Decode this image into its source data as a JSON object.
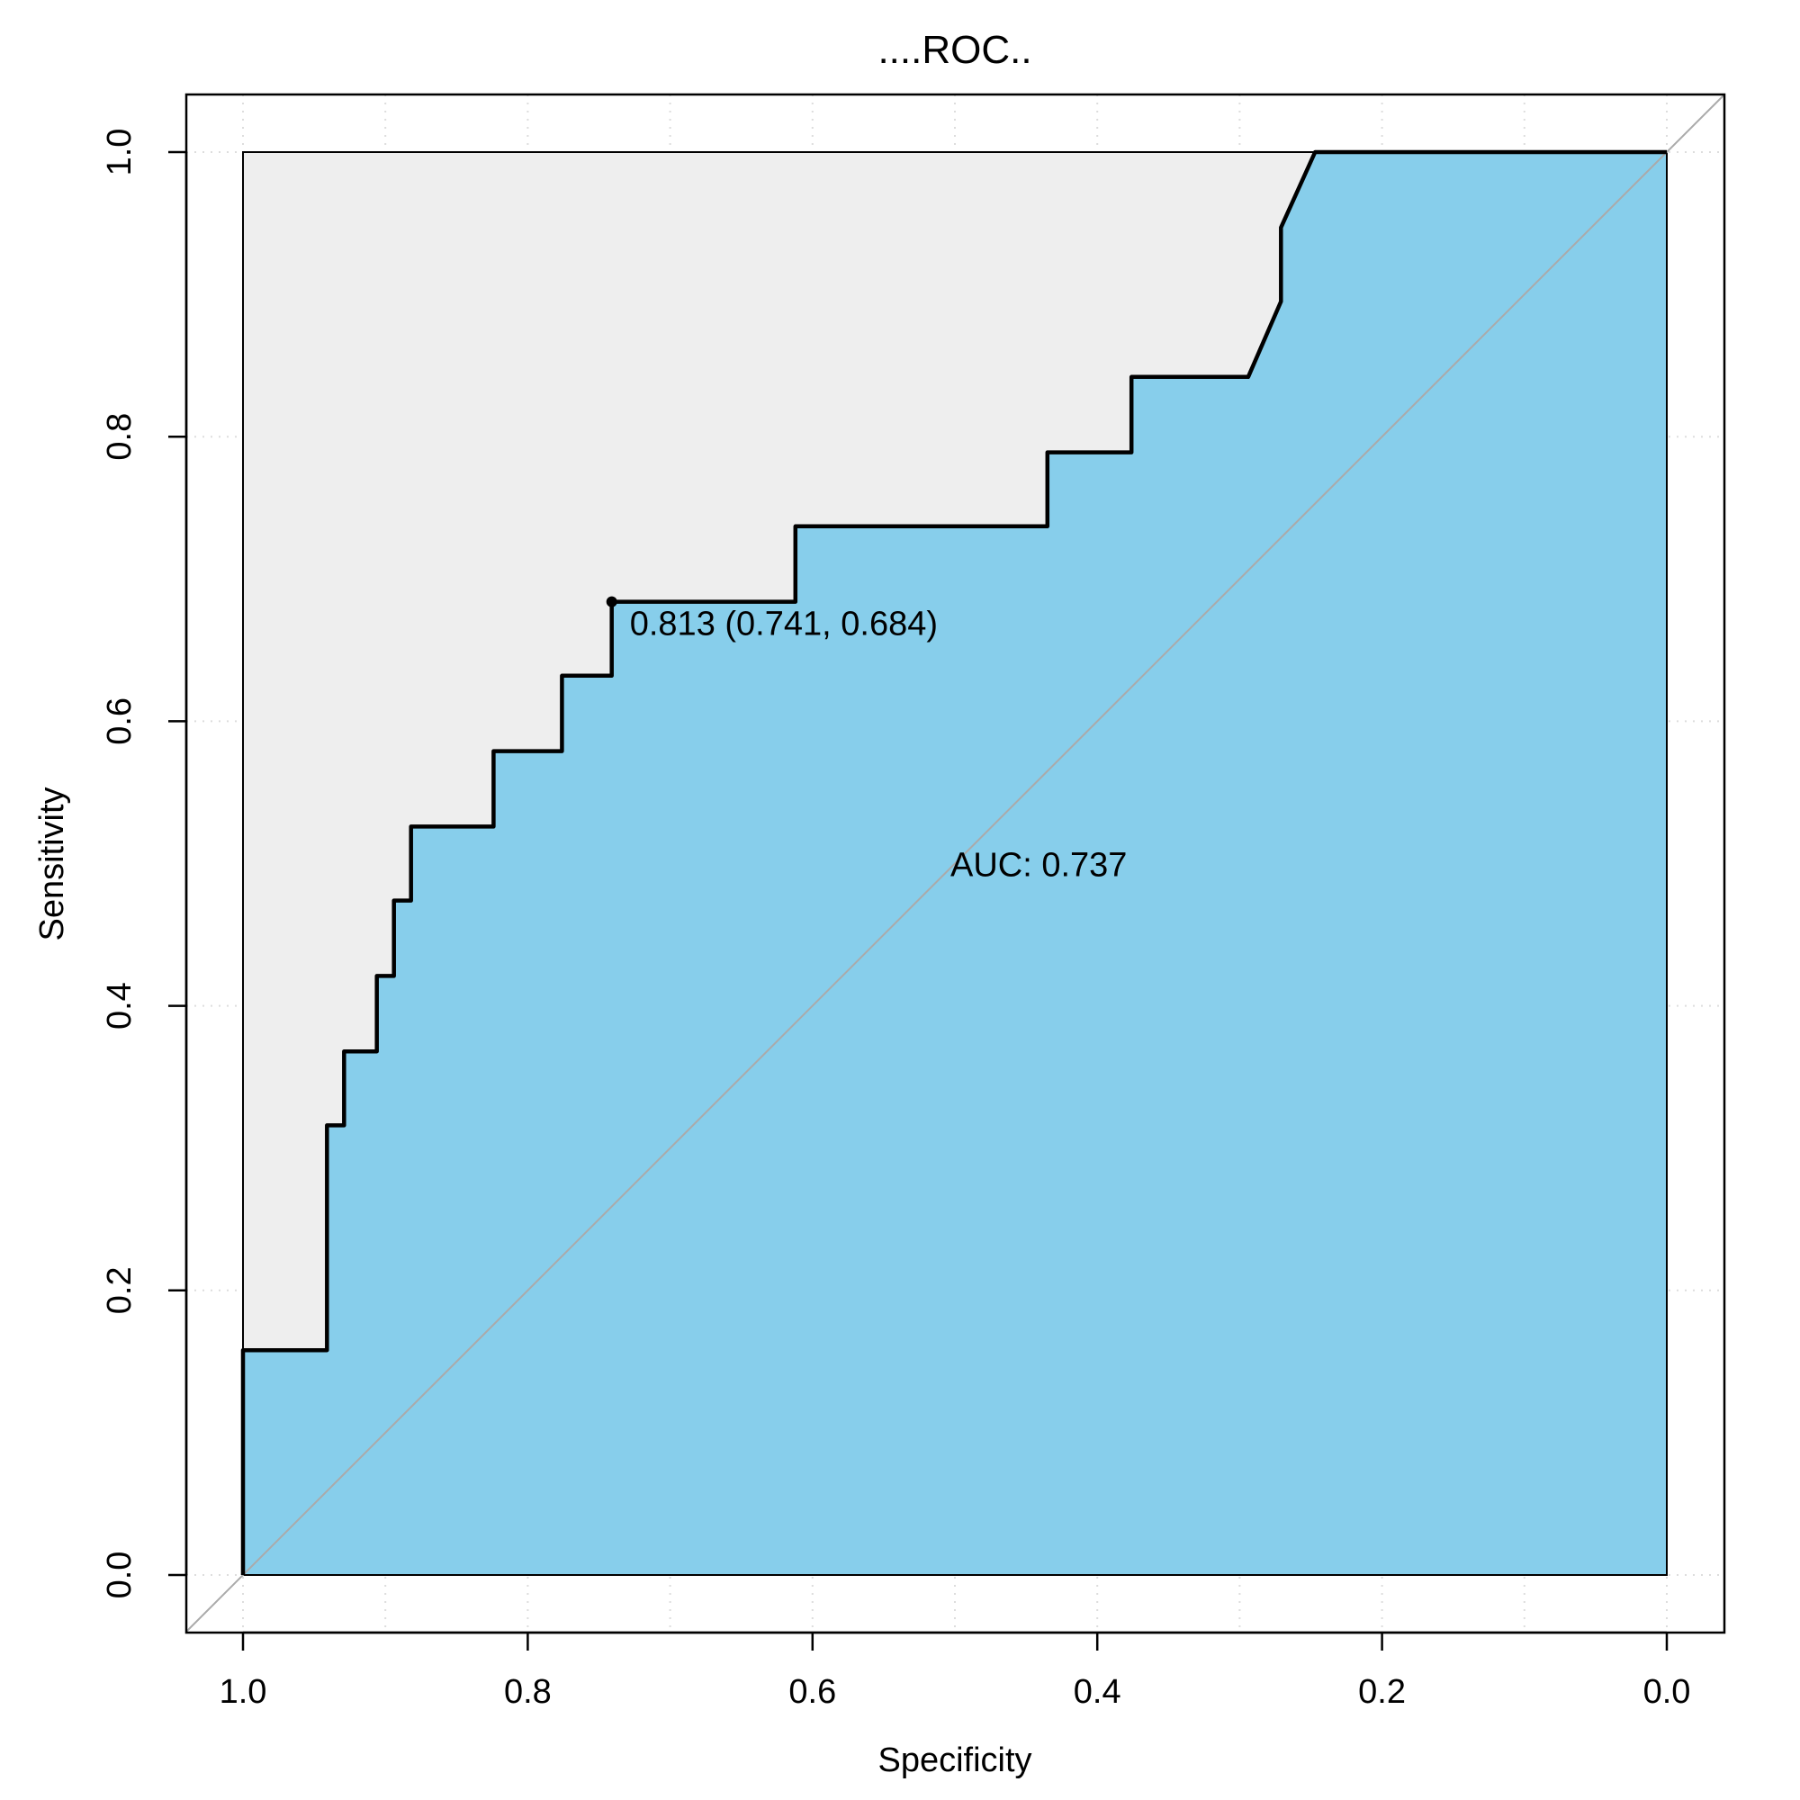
{
  "chart_data": {
    "type": "line",
    "title": "....ROC..",
    "xlabel": "Specificity",
    "ylabel": "Sensitivity",
    "xlim": [
      1.0,
      0.0
    ],
    "ylim": [
      0.0,
      1.0
    ],
    "x_reversed": true,
    "grid": true,
    "x_ticks": [
      "1.0",
      "0.8",
      "0.6",
      "0.4",
      "0.2",
      "0.0"
    ],
    "y_ticks": [
      "0.0",
      "0.2",
      "0.4",
      "0.6",
      "0.8",
      "1.0"
    ],
    "series": [
      {
        "x": [
          1.0,
          1.0,
          0.941,
          0.941,
          0.929,
          0.929,
          0.906,
          0.906,
          0.894,
          0.894,
          0.882,
          0.882,
          0.824,
          0.824,
          0.776,
          0.776,
          0.741,
          0.741,
          0.612,
          0.612,
          0.435,
          0.435,
          0.376,
          0.376,
          0.294,
          0.271,
          0.271,
          0.247,
          0.0
        ],
        "y": [
          0.0,
          0.158,
          0.158,
          0.316,
          0.316,
          0.368,
          0.368,
          0.421,
          0.421,
          0.474,
          0.474,
          0.526,
          0.526,
          0.579,
          0.579,
          0.632,
          0.632,
          0.684,
          0.684,
          0.737,
          0.737,
          0.789,
          0.789,
          0.842,
          0.842,
          0.895,
          0.947,
          1.0,
          1.0
        ]
      }
    ],
    "best_threshold": {
      "x": 0.741,
      "y": 0.684,
      "label": "0.813 (0.741, 0.684)"
    },
    "auc_label": "AUC: 0.737",
    "colors": {
      "auc_fill": "#87ceeb",
      "ideal_fill": "#eeeeee",
      "curve": "#000000",
      "diagonal": "#aaaaaa",
      "grid": "#dddddd"
    }
  }
}
